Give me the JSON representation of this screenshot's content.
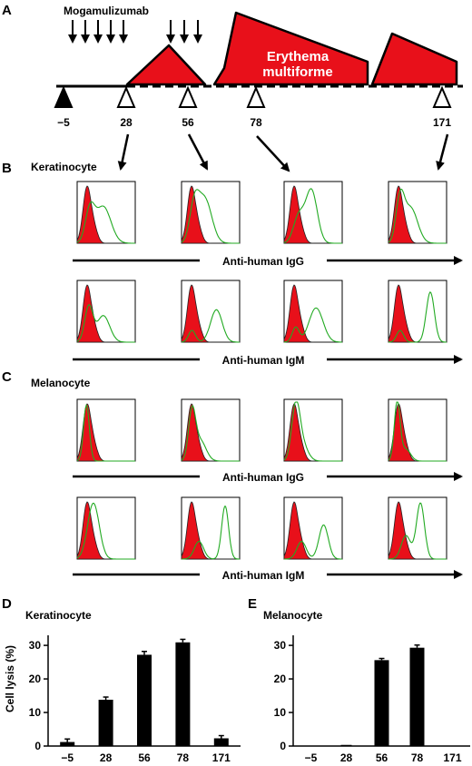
{
  "panels": {
    "A": "A",
    "B": "B",
    "C": "C",
    "D": "D",
    "E": "E"
  },
  "timeline": {
    "drug_label": "Mogamulizumab",
    "event_label_line1": "Erythema",
    "event_label_line2": "multiforme",
    "days": [
      "−5",
      "28",
      "56",
      "78",
      "171"
    ]
  },
  "flow": {
    "keratinocyte_title": "Keratinocyte",
    "melanocyte_title": "Melanocyte",
    "igg_label": "Anti-human IgG",
    "igm_label": "Anti-human IgM",
    "red_fill": "#e8101a",
    "green_line": "#22aa22"
  },
  "chart_data": [
    {
      "type": "bar",
      "title": "Keratinocyte",
      "categories": [
        "−5",
        "28",
        "56",
        "78",
        "171"
      ],
      "values": [
        1.2,
        13.8,
        27.2,
        30.9,
        2.3
      ],
      "errors": [
        0.9,
        0.8,
        1.0,
        0.9,
        0.8
      ],
      "ylabel": "Cell lysis (%)",
      "yticks": [
        "0",
        "10",
        "20",
        "30"
      ],
      "ylim": [
        0,
        33
      ]
    },
    {
      "type": "bar",
      "title": "Melanocyte",
      "categories": [
        "−5",
        "28",
        "56",
        "78",
        "171"
      ],
      "values": [
        0,
        0.1,
        25.6,
        29.3,
        0
      ],
      "errors": [
        0,
        0,
        0.5,
        0.8,
        0
      ],
      "ylabel": "",
      "yticks": [
        "0",
        "10",
        "20",
        "30"
      ],
      "ylim": [
        0,
        33
      ]
    }
  ]
}
